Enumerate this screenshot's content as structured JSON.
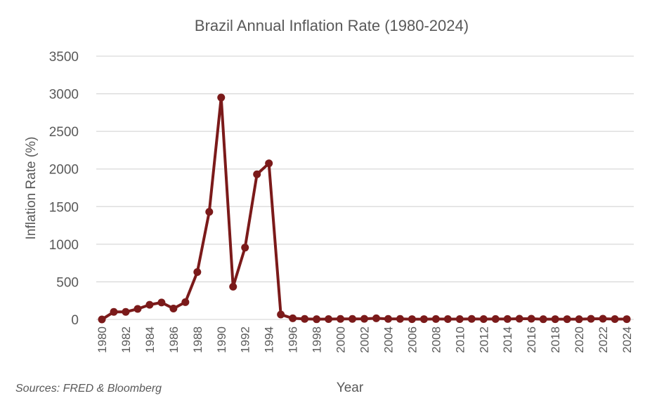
{
  "chart_data": {
    "type": "line",
    "title": "Brazil Annual Inflation Rate  (1980-2024)",
    "xlabel": "Year",
    "ylabel": "Inflation Rate (%)",
    "source": "Sources: FRED & Bloomberg",
    "ylim": [
      0,
      3500
    ],
    "yticks": [
      0,
      500,
      1000,
      1500,
      2000,
      2500,
      3000,
      3500
    ],
    "xticks": [
      1980,
      1982,
      1984,
      1986,
      1988,
      1990,
      1992,
      1994,
      1996,
      1998,
      2000,
      2002,
      2004,
      2006,
      2008,
      2010,
      2012,
      2014,
      2016,
      2018,
      2020,
      2022,
      2024
    ],
    "grid": true,
    "legend": "none",
    "color": "#7B1A1A",
    "x": [
      1980,
      1981,
      1982,
      1983,
      1984,
      1985,
      1986,
      1987,
      1988,
      1989,
      1990,
      1991,
      1992,
      1993,
      1994,
      1995,
      1996,
      1997,
      1998,
      1999,
      2000,
      2001,
      2002,
      2003,
      2004,
      2005,
      2006,
      2007,
      2008,
      2009,
      2010,
      2011,
      2012,
      2013,
      2014,
      2015,
      2016,
      2017,
      2018,
      2019,
      2020,
      2021,
      2022,
      2023,
      2024
    ],
    "values": [
      0,
      100,
      100,
      140,
      195,
      225,
      145,
      230,
      630,
      1430,
      2950,
      435,
      955,
      1930,
      2075,
      65,
      15,
      7,
      3,
      5,
      7,
      7,
      8,
      15,
      7,
      7,
      4,
      4,
      6,
      5,
      5,
      7,
      5,
      6,
      6,
      9,
      9,
      3,
      4,
      4,
      3,
      8,
      9,
      5,
      4
    ]
  }
}
